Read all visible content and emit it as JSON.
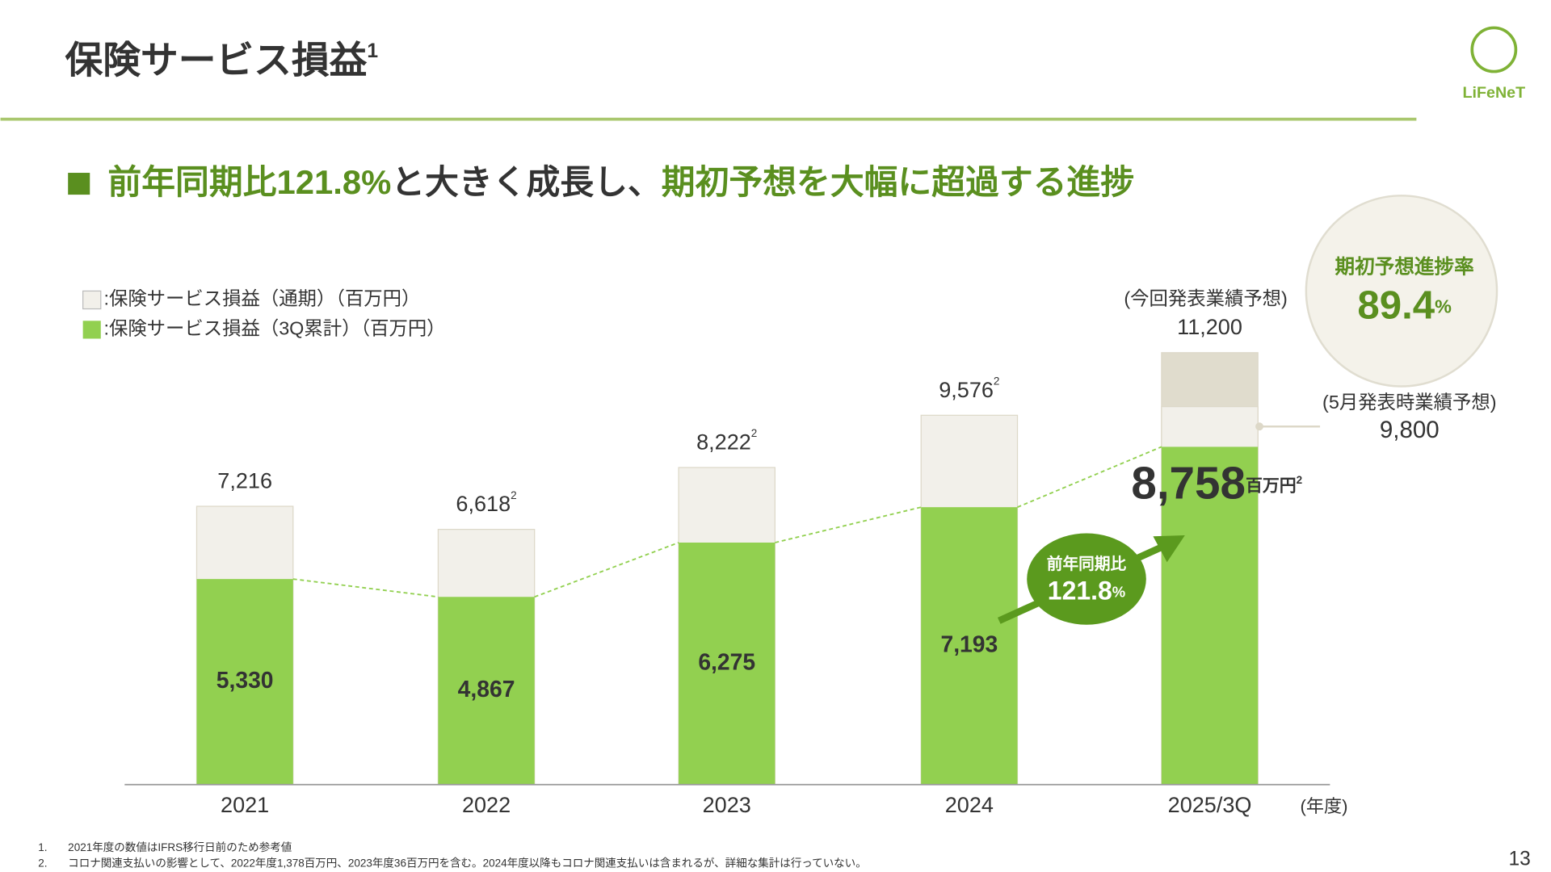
{
  "header": {
    "title": "保険サービス損益",
    "title_note": "1",
    "logo": "LiFeNeT"
  },
  "headline": [
    "前年同期比121.8%",
    "と大きく成長し、",
    "期初予想を大幅に超過する進捗"
  ],
  "chart_data": {
    "type": "bar",
    "categories": [
      "2021",
      "2022",
      "2023",
      "2024",
      "2025/3Q"
    ],
    "x_unit": "(年度)",
    "ylim": [
      0,
      12000
    ],
    "series": [
      {
        "name": ":保険サービス損益（通期）（百万円）",
        "color": "#f2f0ea",
        "colors": [
          "#f2f0ea",
          "#f2f0ea",
          "#f2f0ea",
          "#f2f0ea",
          "#e0dccd"
        ],
        "values": [
          7216,
          6618,
          8222,
          9576,
          11200
        ],
        "value_labels": [
          "7,216",
          "6,618",
          "8,222",
          "9,576",
          "11,200"
        ],
        "value_notes": [
          null,
          "2",
          "2",
          "2",
          null
        ]
      },
      {
        "name": ":保険サービス損益（3Q累計）（百万円）",
        "color": "#92d050",
        "values": [
          5330,
          4867,
          6275,
          7193,
          8758
        ],
        "value_labels": [
          "5,330",
          "4,867",
          "6,275",
          "7,193",
          "8,758"
        ]
      }
    ],
    "current_forecast_label": "(今回発表業績予想)",
    "forecast": {
      "label": "(5月発表時業績予想)",
      "value": 9800,
      "value_label": "9,800",
      "color": "#f2f0ea"
    },
    "latest_unit": "百万円",
    "latest_unit_note": "2",
    "growth": {
      "label": "前年同期比",
      "value": 121.8,
      "unit": "%"
    },
    "progress": {
      "label": "期初予想進捗率",
      "value": 89.4,
      "unit": "%"
    }
  },
  "footnotes": [
    {
      "number": "1.",
      "text": "2021年度の数値はIFRS移行日前のため参考値"
    },
    {
      "number": "2.",
      "text": "コロナ関連支払いの影響として、2022年度1,378百万円、2023年度36百万円を含む。2024年度以降もコロナ関連支払いは含まれるが、詳細な集計は行っていない。"
    }
  ],
  "page_number": "13"
}
